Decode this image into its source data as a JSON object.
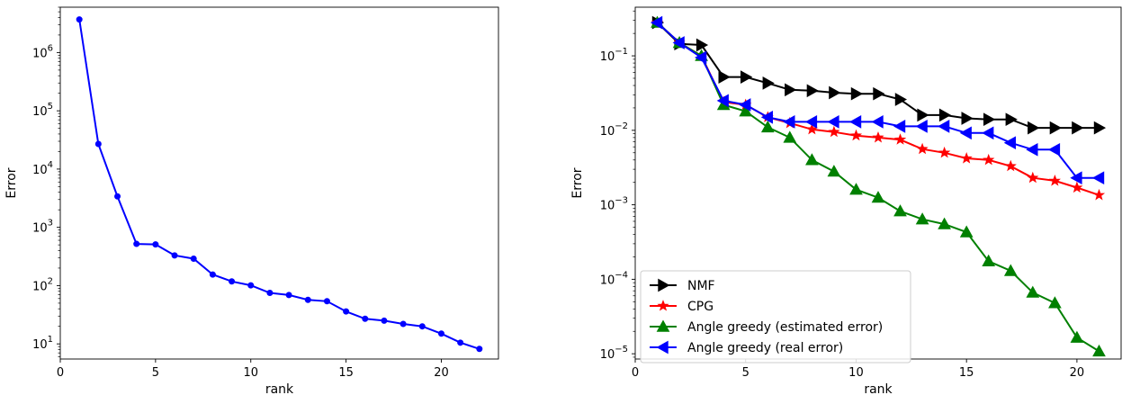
{
  "chart_data": [
    {
      "type": "line",
      "title": "",
      "xlabel": "rank",
      "ylabel": "Error",
      "yscale": "log",
      "xlim": [
        0,
        23
      ],
      "ylim": [
        5.5,
        6000000
      ],
      "xticks": [
        0,
        5,
        10,
        15,
        20
      ],
      "yticks": [
        {
          "value": 10,
          "exp": "1"
        },
        {
          "value": 100,
          "exp": "2"
        },
        {
          "value": 1000,
          "exp": "3"
        },
        {
          "value": 10000,
          "exp": "4"
        },
        {
          "value": 100000,
          "exp": "5"
        },
        {
          "value": 1000000,
          "exp": "6"
        }
      ],
      "grid": false,
      "series": [
        {
          "color": "#0000ff",
          "marker": "dot",
          "x": [
            1,
            2,
            3,
            4,
            5,
            6,
            7,
            8,
            9,
            10,
            11,
            12,
            13,
            14,
            15,
            16,
            17,
            18,
            19,
            20,
            21,
            22
          ],
          "y": [
            3700000,
            27000,
            3400,
            520,
            510,
            330,
            290,
            155,
            118,
            101,
            75,
            69,
            57,
            54,
            36,
            27,
            25,
            22,
            20,
            15,
            10.5,
            8.2
          ]
        }
      ]
    },
    {
      "type": "line",
      "title": "",
      "xlabel": "rank",
      "ylabel": "Error",
      "yscale": "log",
      "xlim": [
        0,
        22
      ],
      "ylim": [
        8.5e-06,
        0.45
      ],
      "xticks": [
        0,
        5,
        10,
        15,
        20
      ],
      "yticks": [
        {
          "value": 1e-05,
          "exp": "−5"
        },
        {
          "value": 0.0001,
          "exp": "−4"
        },
        {
          "value": 0.001,
          "exp": "−3"
        },
        {
          "value": 0.01,
          "exp": "−2"
        },
        {
          "value": 0.1,
          "exp": "−1"
        }
      ],
      "grid": false,
      "legend_position": "lower-left",
      "series": [
        {
          "name": "NMF",
          "color": "#000000",
          "marker": "triangle-right",
          "x": [
            1,
            2,
            3,
            4,
            5,
            6,
            7,
            8,
            9,
            10,
            11,
            12,
            13,
            14,
            15,
            16,
            17,
            18,
            19,
            20,
            21
          ],
          "y": [
            0.28,
            0.145,
            0.14,
            0.052,
            0.052,
            0.043,
            0.035,
            0.034,
            0.032,
            0.031,
            0.031,
            0.026,
            0.016,
            0.016,
            0.0145,
            0.014,
            0.014,
            0.0108,
            0.0108,
            0.0108,
            0.0108
          ]
        },
        {
          "name": "CPG",
          "color": "#ff0000",
          "marker": "star",
          "x": [
            1,
            2,
            3,
            4,
            5,
            6,
            7,
            8,
            9,
            10,
            11,
            12,
            13,
            14,
            15,
            16,
            17,
            18,
            19,
            20,
            21
          ],
          "y": [
            0.28,
            0.15,
            0.1,
            0.024,
            0.022,
            0.015,
            0.0125,
            0.0103,
            0.0095,
            0.0085,
            0.008,
            0.0075,
            0.0056,
            0.005,
            0.0042,
            0.004,
            0.0033,
            0.0023,
            0.0021,
            0.0017,
            0.00135
          ]
        },
        {
          "name": "Angle greedy (estimated error)",
          "color": "#008000",
          "marker": "triangle-up",
          "x": [
            1,
            2,
            3,
            4,
            5,
            6,
            7,
            8,
            9,
            10,
            11,
            12,
            13,
            14,
            15,
            16,
            17,
            18,
            19,
            20,
            21
          ],
          "y": [
            0.28,
            0.15,
            0.1,
            0.022,
            0.018,
            0.011,
            0.008,
            0.004,
            0.0028,
            0.0016,
            0.00125,
            0.00082,
            0.00064,
            0.00055,
            0.00043,
            0.000175,
            0.00013,
            6.65e-05,
            4.8e-05,
            1.65e-05,
            1.08e-05
          ]
        },
        {
          "name": "Angle greedy (real error)",
          "color": "#0000ff",
          "marker": "triangle-left",
          "x": [
            1,
            2,
            3,
            4,
            5,
            6,
            7,
            8,
            9,
            10,
            11,
            12,
            13,
            14,
            15,
            16,
            17,
            18,
            19,
            20,
            21
          ],
          "y": [
            0.28,
            0.15,
            0.095,
            0.025,
            0.022,
            0.015,
            0.013,
            0.013,
            0.013,
            0.013,
            0.013,
            0.0113,
            0.0113,
            0.0113,
            0.0092,
            0.0092,
            0.0068,
            0.0055,
            0.0055,
            0.0023,
            0.0023
          ]
        }
      ]
    }
  ]
}
